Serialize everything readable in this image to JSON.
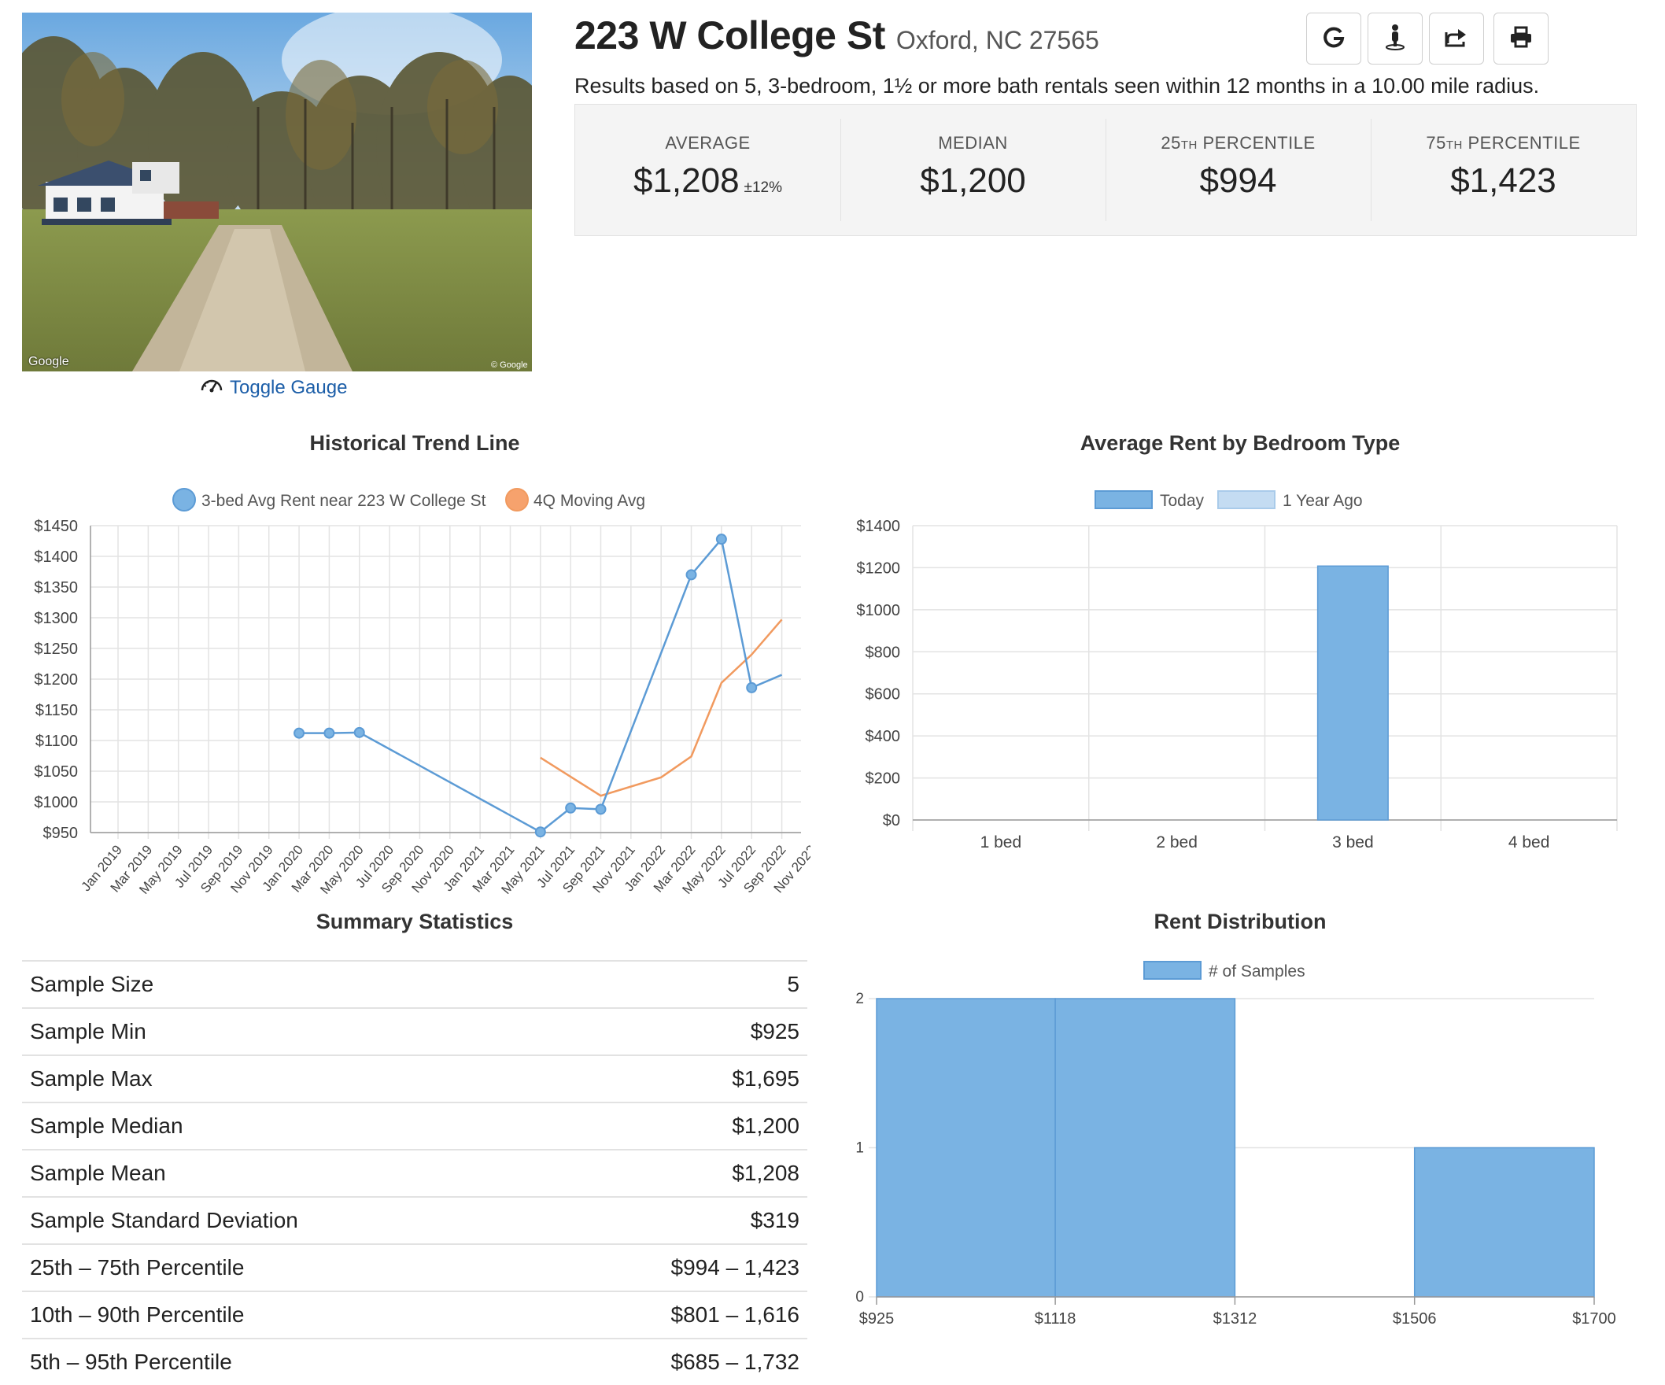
{
  "header": {
    "address": "223 W College St",
    "city": "Oxford, NC 27565",
    "results": "Results based on 5, 3-bedroom, 1½ or more bath rentals seen within 12 months in a 10.00 mile radius."
  },
  "photo": {
    "watermark_left": "Google",
    "watermark_right": "© Google"
  },
  "toggle_gauge": {
    "label": "Toggle Gauge",
    "icon": "gauge-icon"
  },
  "toolbar": [
    {
      "name": "google-button",
      "icon": "google-g-icon"
    },
    {
      "name": "street-view-button",
      "icon": "pegman-icon"
    },
    {
      "name": "share-button",
      "icon": "share-icon"
    },
    {
      "name": "print-button",
      "icon": "print-icon"
    }
  ],
  "stats": [
    {
      "label": "AVERAGE",
      "value": "$1,208",
      "extra": "±12%"
    },
    {
      "label": "MEDIAN",
      "value": "$1,200"
    },
    {
      "label_num": "25",
      "label_sup": "TH",
      "label_rest": " PERCENTILE",
      "value": "$994"
    },
    {
      "label_num": "75",
      "label_sup": "TH",
      "label_rest": " PERCENTILE",
      "value": "$1,423"
    }
  ],
  "titles": {
    "trend": "Historical Trend Line",
    "bedroom": "Average Rent by Bedroom Type",
    "summary": "Summary Statistics",
    "distribution": "Rent Distribution"
  },
  "summary_rows": [
    {
      "label": "Sample Size",
      "value": "5"
    },
    {
      "label": "Sample Min",
      "value": "$925"
    },
    {
      "label": "Sample Max",
      "value": "$1,695"
    },
    {
      "label": "Sample Median",
      "value": "$1,200"
    },
    {
      "label": "Sample Mean",
      "value": "$1,208"
    },
    {
      "label": "Sample Standard Deviation",
      "value": "$319"
    },
    {
      "label": "25th – 75th Percentile",
      "value": "$994 – 1,423"
    },
    {
      "label": "10th – 90th Percentile",
      "value": "$801 – 1,616"
    },
    {
      "label": "5th – 95th Percentile",
      "value": "$685 – 1,732"
    }
  ],
  "colors": {
    "blue": "#7ab3e3",
    "blue_line": "#5c9bd5",
    "orange": "#f19a5f",
    "link": "#1c5ea8"
  },
  "chart_data": [
    {
      "id": "trend",
      "type": "line",
      "title": "Historical Trend Line",
      "x_labels": [
        "Jan 2019",
        "Mar 2019",
        "May 2019",
        "Jul 2019",
        "Sep 2019",
        "Nov 2019",
        "Jan 2020",
        "Mar 2020",
        "May 2020",
        "Jul 2020",
        "Sep 2020",
        "Nov 2020",
        "Jan 2021",
        "Mar 2021",
        "May 2021",
        "Jul 2021",
        "Sep 2021",
        "Nov 2021",
        "Jan 2022",
        "Mar 2022",
        "May 2022",
        "Jul 2022",
        "Sep 2022",
        "Nov 2022"
      ],
      "y_ticks": [
        "$950",
        "$1000",
        "$1050",
        "$1100",
        "$1150",
        "$1200",
        "$1250",
        "$1300",
        "$1350",
        "$1400",
        "$1450"
      ],
      "ylim": [
        950,
        1450
      ],
      "series": [
        {
          "name": "3-bed Avg Rent near 223 W College St",
          "color": "#5c9bd5",
          "points": [
            [
              "Jan 2020",
              1112
            ],
            [
              "Mar 2020",
              1112
            ],
            [
              "May 2020",
              1113
            ],
            [
              "May 2021",
              951
            ],
            [
              "Jul 2021",
              990
            ],
            [
              "Sep 2021",
              988
            ],
            [
              "Mar 2022",
              1370
            ],
            [
              "May 2022",
              1428
            ],
            [
              "Jul 2022",
              1186
            ],
            [
              "Sep 2022",
              1207
            ]
          ],
          "markers": [
            true,
            true,
            true,
            true,
            true,
            true,
            true,
            true,
            true,
            false
          ]
        },
        {
          "name": "4Q Moving Avg",
          "color": "#f19a5f",
          "points": [
            [
              "May 2021",
              1072
            ],
            [
              "Sep 2021",
              1010
            ],
            [
              "Jan 2022",
              1040
            ],
            [
              "Mar 2022",
              1074
            ],
            [
              "May 2022",
              1194
            ],
            [
              "Jul 2022",
              1240
            ],
            [
              "Sep 2022",
              1297
            ]
          ]
        }
      ],
      "legend": "top"
    },
    {
      "id": "bedroom",
      "type": "bar",
      "title": "Average Rent by Bedroom Type",
      "categories": [
        "1 bed",
        "2 bed",
        "3 bed",
        "4 bed"
      ],
      "series": [
        {
          "name": "Today",
          "values": [
            0,
            0,
            1208,
            0
          ]
        },
        {
          "name": "1 Year Ago",
          "values": [
            0,
            0,
            0,
            0
          ]
        }
      ],
      "y_ticks": [
        "$0",
        "$200",
        "$400",
        "$600",
        "$800",
        "$1000",
        "$1200",
        "$1400"
      ],
      "ylim": [
        0,
        1400
      ],
      "legend": "top"
    },
    {
      "id": "distribution",
      "type": "bar",
      "title": "Rent Distribution",
      "x_ticks": [
        "$925",
        "$1118",
        "$1312",
        "$1506",
        "$1700"
      ],
      "bins": [
        [
          "$925",
          "$1118",
          2
        ],
        [
          "$1118",
          "$1312",
          2
        ],
        [
          "$1312",
          "$1506",
          0
        ],
        [
          "$1506",
          "$1700",
          1
        ]
      ],
      "series": [
        {
          "name": "# of Samples"
        }
      ],
      "y_ticks": [
        "0",
        "1",
        "2"
      ],
      "ylim": [
        0,
        2
      ],
      "legend": "top"
    }
  ]
}
